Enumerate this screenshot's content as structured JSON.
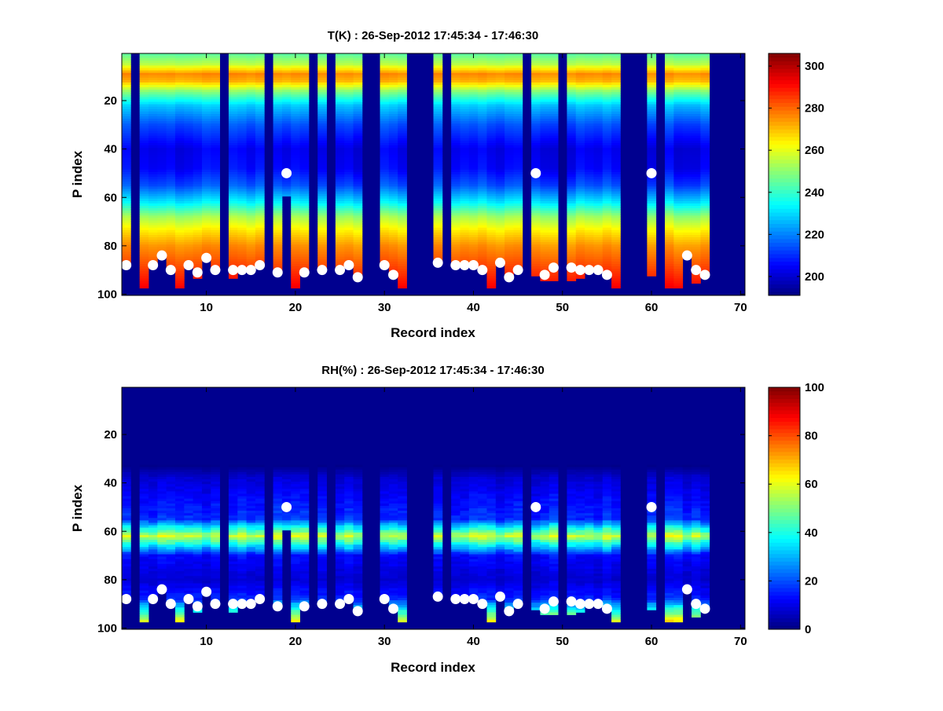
{
  "chart_data": [
    {
      "type": "heatmap",
      "title": "T(K) : 26-Sep-2012 17:45:34 - 17:46:30",
      "xlabel": "Record index",
      "ylabel": "P index",
      "xlim": [
        0.5,
        70.5
      ],
      "ylim": [
        0.5,
        100.5
      ],
      "y_reversed": true,
      "xticks": [
        10,
        20,
        30,
        40,
        50,
        60,
        70
      ],
      "yticks": [
        20,
        40,
        60,
        80,
        100
      ],
      "colormap": "jet",
      "clim": [
        191,
        306
      ],
      "colorbar_ticks": [
        200,
        220,
        240,
        260,
        280,
        300
      ],
      "profile": [
        [
          1,
          245
        ],
        [
          5,
          255
        ],
        [
          9,
          276
        ],
        [
          12,
          271
        ],
        [
          16,
          250
        ],
        [
          22,
          228
        ],
        [
          30,
          214
        ],
        [
          40,
          203
        ],
        [
          48,
          205
        ],
        [
          55,
          214
        ],
        [
          62,
          232
        ],
        [
          68,
          252
        ],
        [
          74,
          265
        ],
        [
          80,
          275
        ],
        [
          88,
          283
        ],
        [
          97,
          292
        ]
      ],
      "data_top_p": 1
    },
    {
      "type": "heatmap",
      "title": "RH(%) : 26-Sep-2012 17:45:34 - 17:46:30",
      "xlabel": "Record index",
      "ylabel": "P index",
      "xlim": [
        0.5,
        70.5
      ],
      "ylim": [
        0.5,
        100.5
      ],
      "y_reversed": true,
      "xticks": [
        10,
        20,
        30,
        40,
        50,
        60,
        70
      ],
      "yticks": [
        20,
        40,
        60,
        80,
        100
      ],
      "colormap": "jet",
      "clim": [
        0,
        100
      ],
      "colorbar_ticks": [
        0,
        20,
        40,
        60,
        80,
        100
      ],
      "profile": [
        [
          1,
          0
        ],
        [
          33,
          1
        ],
        [
          38,
          8
        ],
        [
          45,
          12
        ],
        [
          55,
          17
        ],
        [
          59,
          40
        ],
        [
          62,
          57
        ],
        [
          66,
          35
        ],
        [
          70,
          13
        ],
        [
          80,
          8
        ],
        [
          88,
          16
        ],
        [
          97,
          60
        ]
      ],
      "data_top_p": 33
    }
  ],
  "records": [
    {
      "x": 1,
      "bottom_p": 88,
      "surface_p": 88
    },
    {
      "x": 3,
      "bottom_p": 97,
      "surface_p": null
    },
    {
      "x": 4,
      "bottom_p": 88,
      "surface_p": 88
    },
    {
      "x": 5,
      "bottom_p": 84,
      "surface_p": 84
    },
    {
      "x": 6,
      "bottom_p": 90,
      "surface_p": 90
    },
    {
      "x": 7,
      "bottom_p": 97,
      "surface_p": null
    },
    {
      "x": 8,
      "bottom_p": 88,
      "surface_p": 88
    },
    {
      "x": 9,
      "bottom_p": 93,
      "surface_p": 91
    },
    {
      "x": 10,
      "bottom_p": 85,
      "surface_p": 85
    },
    {
      "x": 11,
      "bottom_p": 90,
      "surface_p": 90
    },
    {
      "x": 13,
      "bottom_p": 93,
      "surface_p": 90
    },
    {
      "x": 14,
      "bottom_p": 90,
      "surface_p": 90
    },
    {
      "x": 15,
      "bottom_p": 90,
      "surface_p": 90
    },
    {
      "x": 16,
      "bottom_p": 88,
      "surface_p": 88
    },
    {
      "x": 18,
      "bottom_p": 91,
      "surface_p": 91
    },
    {
      "x": 19,
      "bottom_p": 59,
      "surface_p": 50
    },
    {
      "x": 20,
      "bottom_p": 97,
      "surface_p": null
    },
    {
      "x": 21,
      "bottom_p": 91,
      "surface_p": 91
    },
    {
      "x": 23,
      "bottom_p": 90,
      "surface_p": 90
    },
    {
      "x": 25,
      "bottom_p": 90,
      "surface_p": 90
    },
    {
      "x": 26,
      "bottom_p": 88,
      "surface_p": 88
    },
    {
      "x": 27,
      "bottom_p": 93,
      "surface_p": 93
    },
    {
      "x": 30,
      "bottom_p": 88,
      "surface_p": 88
    },
    {
      "x": 31,
      "bottom_p": 92,
      "surface_p": 92
    },
    {
      "x": 32,
      "bottom_p": 97,
      "surface_p": null
    },
    {
      "x": 36,
      "bottom_p": 87,
      "surface_p": 87
    },
    {
      "x": 38,
      "bottom_p": 88,
      "surface_p": 88
    },
    {
      "x": 39,
      "bottom_p": 88,
      "surface_p": 88
    },
    {
      "x": 40,
      "bottom_p": 88,
      "surface_p": 88
    },
    {
      "x": 41,
      "bottom_p": 90,
      "surface_p": 90
    },
    {
      "x": 42,
      "bottom_p": 97,
      "surface_p": null
    },
    {
      "x": 43,
      "bottom_p": 87,
      "surface_p": 87
    },
    {
      "x": 44,
      "bottom_p": 93,
      "surface_p": 93
    },
    {
      "x": 45,
      "bottom_p": 90,
      "surface_p": 90
    },
    {
      "x": 47,
      "bottom_p": 92,
      "surface_p": 50
    },
    {
      "x": 48,
      "bottom_p": 94,
      "surface_p": 92
    },
    {
      "x": 49,
      "bottom_p": 94,
      "surface_p": 89
    },
    {
      "x": 51,
      "bottom_p": 94,
      "surface_p": 89
    },
    {
      "x": 52,
      "bottom_p": 93,
      "surface_p": 90
    },
    {
      "x": 53,
      "bottom_p": 90,
      "surface_p": 90
    },
    {
      "x": 54,
      "bottom_p": 90,
      "surface_p": 90
    },
    {
      "x": 55,
      "bottom_p": 92,
      "surface_p": 92
    },
    {
      "x": 56,
      "bottom_p": 97,
      "surface_p": null
    },
    {
      "x": 60,
      "bottom_p": 92,
      "surface_p": 50
    },
    {
      "x": 62,
      "bottom_p": 97,
      "surface_p": null
    },
    {
      "x": 63,
      "bottom_p": 97,
      "surface_p": null
    },
    {
      "x": 64,
      "bottom_p": 84,
      "surface_p": 84
    },
    {
      "x": 65,
      "bottom_p": 95,
      "surface_p": 90
    },
    {
      "x": 66,
      "bottom_p": 92,
      "surface_p": 92
    }
  ]
}
